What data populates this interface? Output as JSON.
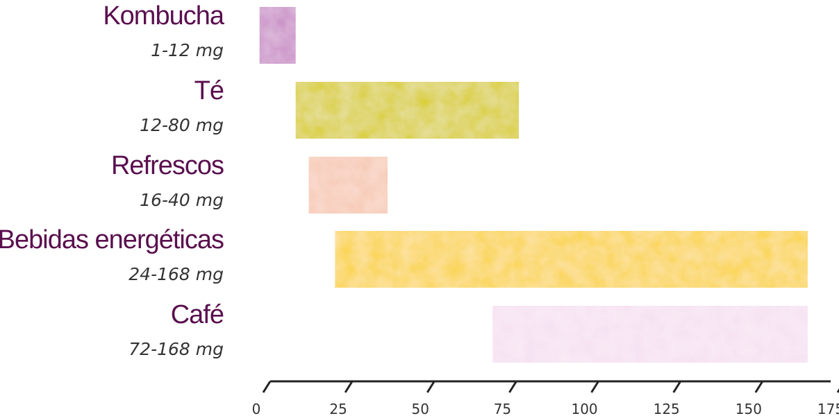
{
  "chart_data": {
    "type": "bar",
    "orientation": "horizontal-range",
    "categories": [
      "Kombucha",
      "Té",
      "Refrescos",
      "Bebidas energéticas",
      "Café"
    ],
    "range_labels": [
      "1-12 mg",
      "12-80 mg",
      "16-40 mg",
      "24-168 mg",
      "72-168 mg"
    ],
    "ranges": [
      [
        1,
        12
      ],
      [
        12,
        80
      ],
      [
        16,
        40
      ],
      [
        24,
        168
      ],
      [
        72,
        168
      ]
    ],
    "colors": [
      "#c98cc6",
      "#d9cd14",
      "#f7c7b2",
      "#fbd33c",
      "#f6e0f1"
    ],
    "xlim": [
      0,
      175
    ],
    "xticks": [
      0,
      25,
      50,
      75,
      100,
      125,
      150,
      175
    ],
    "xtick_labels": [
      "0",
      "25",
      "50",
      "75",
      "100",
      "125",
      "150",
      "175"
    ],
    "grid": false
  }
}
